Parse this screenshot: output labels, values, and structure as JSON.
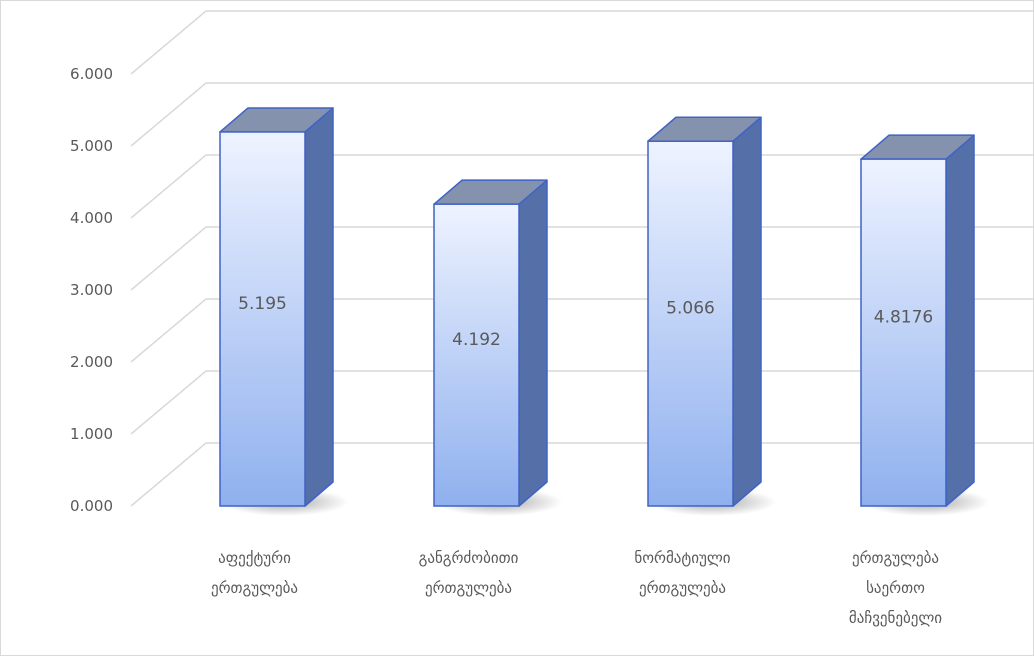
{
  "chart_data": {
    "type": "bar",
    "style": "3d-column",
    "categories": [
      [
        "აფექტური",
        "ერთგულება"
      ],
      [
        "განგრძობითი",
        "ერთგულება"
      ],
      [
        "ნორმატიული",
        "ერთგულება"
      ],
      [
        "ერთგულება",
        "საერთო",
        "მაჩვენებელი"
      ]
    ],
    "values": [
      5.195,
      4.192,
      5.066,
      4.8176
    ],
    "data_labels": [
      "5.195",
      "4.192",
      "5.066",
      "4.8176"
    ],
    "y_ticks": [
      "0.000",
      "1.000",
      "2.000",
      "3.000",
      "4.000",
      "5.000",
      "6.000"
    ],
    "ylim": [
      0,
      6
    ],
    "grid": true,
    "legend": "none",
    "title": "",
    "xlabel": "",
    "ylabel": "",
    "colors": {
      "bar_front_top": "#eef3ff",
      "bar_front_bottom": "#8fb0ee",
      "bar_side": "#5570a8",
      "bar_top": "#8492ad",
      "bar_outline": "#3f63c6",
      "gridline": "#d9d9d9",
      "text": "#595959"
    }
  }
}
